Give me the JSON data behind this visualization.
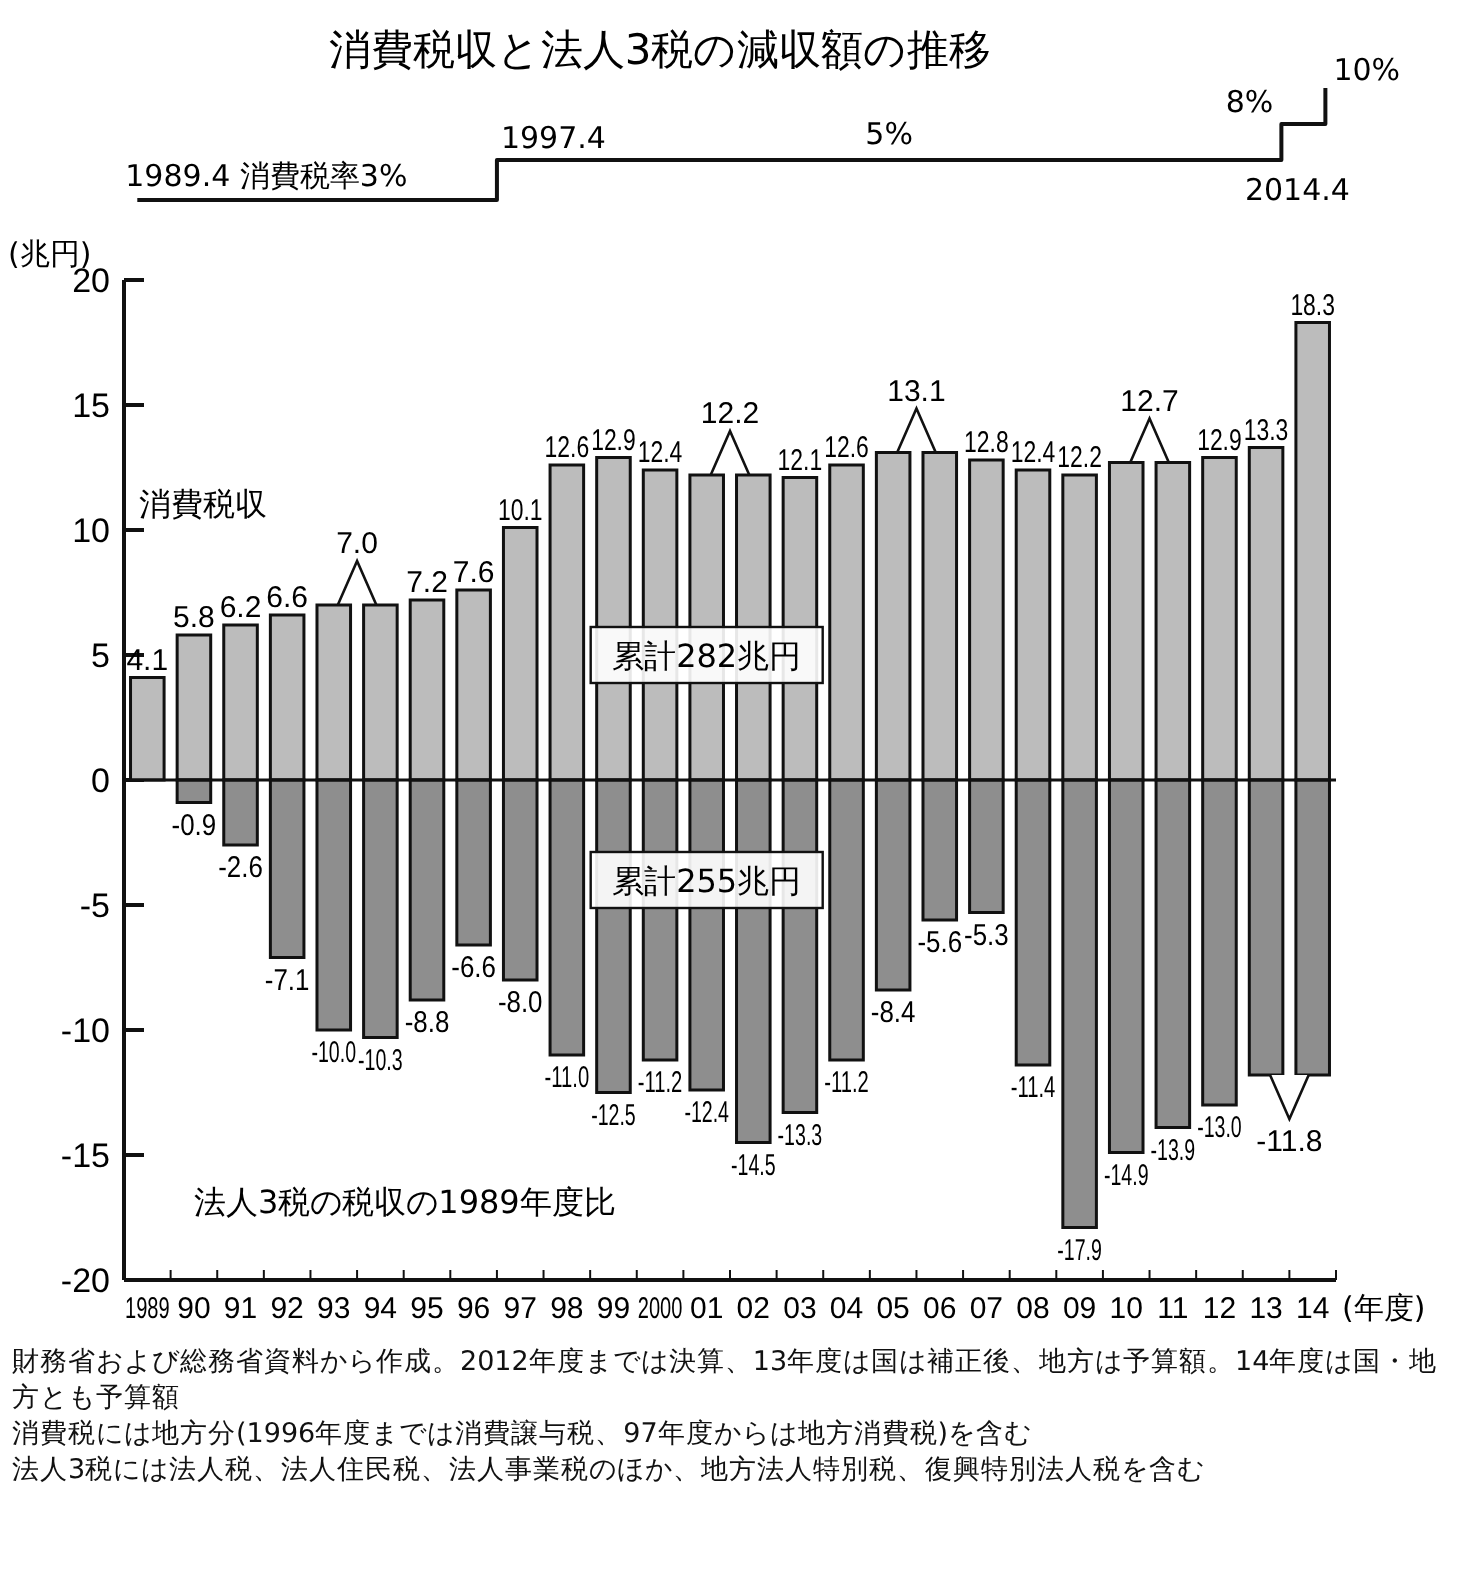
{
  "chart_data": {
    "type": "bar",
    "title": "消費税収と法人3税の減収額の推移",
    "ylabel": "(兆円)",
    "xlabel": "(年度)",
    "categories": [
      "1989",
      "90",
      "91",
      "92",
      "93",
      "94",
      "95",
      "96",
      "97",
      "98",
      "99",
      "2000",
      "01",
      "02",
      "03",
      "04",
      "05",
      "06",
      "07",
      "08",
      "09",
      "10",
      "11",
      "12",
      "13",
      "14"
    ],
    "series": [
      {
        "name": "消費税収",
        "color": "#bcbcbc",
        "values": [
          4.1,
          5.8,
          6.2,
          6.6,
          7.0,
          7.0,
          7.2,
          7.6,
          10.1,
          12.6,
          12.9,
          12.4,
          12.2,
          12.2,
          12.1,
          12.6,
          13.1,
          13.1,
          12.8,
          12.4,
          12.2,
          12.7,
          12.7,
          12.9,
          13.3,
          18.3
        ],
        "value_labels": [
          "4.1",
          "5.8",
          "6.2",
          "6.6",
          "7.0",
          null,
          "7.2",
          "7.6",
          "10.1",
          "12.6",
          "12.9",
          "12.4",
          "12.2",
          null,
          "12.1",
          "12.6",
          "13.1",
          null,
          "12.8",
          "12.4",
          "12.2",
          "12.7",
          null,
          "12.9",
          "13.3",
          "18.3"
        ]
      },
      {
        "name": "法人3税の税収の1989年度比",
        "color": "#8e8e8e",
        "values": [
          null,
          -0.9,
          -2.6,
          -7.1,
          -10.0,
          -10.3,
          -8.8,
          -6.6,
          -8.0,
          -11.0,
          -12.5,
          -11.2,
          -12.4,
          -14.5,
          -13.3,
          -11.2,
          -8.4,
          -5.6,
          -5.3,
          -11.4,
          -17.9,
          -14.9,
          -13.9,
          -13.0,
          -11.8,
          -11.8
        ],
        "value_labels": [
          null,
          "-0.9",
          "-2.6",
          "-7.1",
          "-10.0",
          "-10.3",
          "-8.8",
          "-6.6",
          "-8.0",
          "-11.0",
          "-12.5",
          "-11.2",
          "-12.4",
          "-14.5",
          "-13.3",
          "-11.2",
          "-8.4",
          "-5.6",
          "-5.3",
          "-11.4",
          "-17.9",
          "-14.9",
          "-13.9",
          "-13.0",
          "-11.8",
          null
        ]
      }
    ],
    "stacked": true,
    "ylim": [
      -20,
      20
    ],
    "yticks": [
      -20,
      -15,
      -10,
      -5,
      0,
      5,
      10,
      15,
      20
    ],
    "annotations": [
      "1989.4 消費税率3%",
      "1997.4",
      "5%",
      "8%",
      "10%",
      "2014.4",
      "累計282兆円",
      "累計255兆円",
      "財務省および総務省資料から作成。2012年度までは決算、13年度は国は補正後、地方は予算額。14年度は国・地方とも予算額",
      "消費税には地方分(1996年度までは消費譲与税、97年度からは地方消費税)を含む",
      "法人3税には法人税、法人住民税、法人事業税のほか、地方法人特別税、復興特別法人税を含む"
    ]
  }
}
